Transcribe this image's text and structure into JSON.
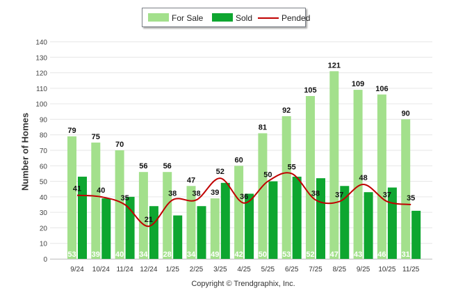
{
  "chart_data": {
    "type": "bar",
    "title": "",
    "xlabel": "",
    "ylabel": "Number of Homes",
    "ylim": [
      0,
      140
    ],
    "yticks": [
      0,
      10,
      20,
      30,
      40,
      50,
      60,
      70,
      80,
      90,
      100,
      110,
      120,
      130,
      140
    ],
    "grid": true,
    "legend_position": "top-center",
    "categories": [
      "9/24",
      "10/24",
      "11/24",
      "12/24",
      "1/25",
      "2/25",
      "3/25",
      "4/25",
      "5/25",
      "6/25",
      "7/25",
      "8/25",
      "9/25",
      "10/25",
      "11/25"
    ],
    "series": [
      {
        "name": "For Sale",
        "type": "bar",
        "color": "#a3e08c",
        "values": [
          79,
          75,
          70,
          56,
          56,
          47,
          39,
          60,
          81,
          92,
          105,
          121,
          109,
          106,
          90
        ]
      },
      {
        "name": "Sold",
        "type": "bar",
        "color": "#0ea630",
        "values": [
          53,
          39,
          40,
          34,
          28,
          34,
          49,
          42,
          50,
          53,
          52,
          47,
          43,
          46,
          31
        ]
      },
      {
        "name": "Pended",
        "type": "line",
        "color": "#c00000",
        "values": [
          41,
          40,
          35,
          21,
          38,
          38,
          52,
          36,
          50,
          55,
          38,
          37,
          48,
          37,
          35
        ]
      }
    ]
  },
  "footer": {
    "copyright": "Copyright © Trendgraphix, Inc."
  }
}
